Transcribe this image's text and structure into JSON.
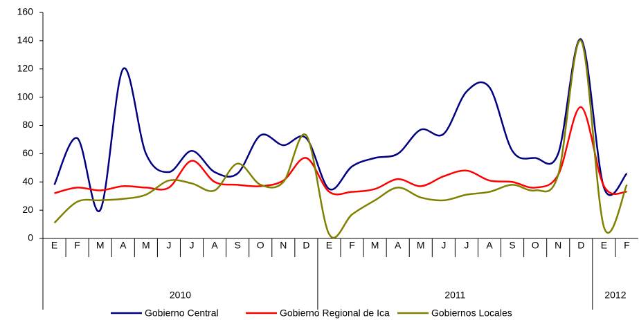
{
  "chart_data": {
    "type": "line",
    "categories": [
      "E",
      "F",
      "M",
      "A",
      "M",
      "J",
      "J",
      "A",
      "S",
      "O",
      "N",
      "D",
      "E",
      "F",
      "M",
      "A",
      "M",
      "J",
      "J",
      "A",
      "S",
      "O",
      "N",
      "D",
      "E",
      "F"
    ],
    "years": [
      "2010",
      "2011",
      "2012"
    ],
    "series": [
      {
        "name": "Gobierno Central",
        "color": "#000080",
        "values": [
          38,
          71,
          20,
          120,
          60,
          47,
          62,
          47,
          46,
          73,
          66,
          71,
          35,
          51,
          57,
          60,
          77,
          74,
          104,
          107,
          62,
          57,
          60,
          141,
          36,
          46
        ]
      },
      {
        "name": "Gobierno Regional de Ica",
        "color": "#ff0000",
        "values": [
          32,
          36,
          34,
          37,
          36,
          36,
          55,
          40,
          38,
          37,
          41,
          57,
          33,
          33,
          35,
          42,
          37,
          44,
          48,
          41,
          40,
          36,
          45,
          93,
          37,
          33
        ]
      },
      {
        "name": "Gobiernos Locales",
        "color": "#808000",
        "values": [
          11,
          26,
          27,
          28,
          31,
          41,
          39,
          34,
          53,
          38,
          40,
          73,
          3,
          17,
          27,
          36,
          29,
          27,
          31,
          33,
          38,
          34,
          45,
          140,
          8,
          38
        ]
      }
    ],
    "ylim": [
      0,
      160
    ],
    "yticks": [
      0,
      20,
      40,
      60,
      80,
      100,
      120,
      140,
      160
    ]
  }
}
